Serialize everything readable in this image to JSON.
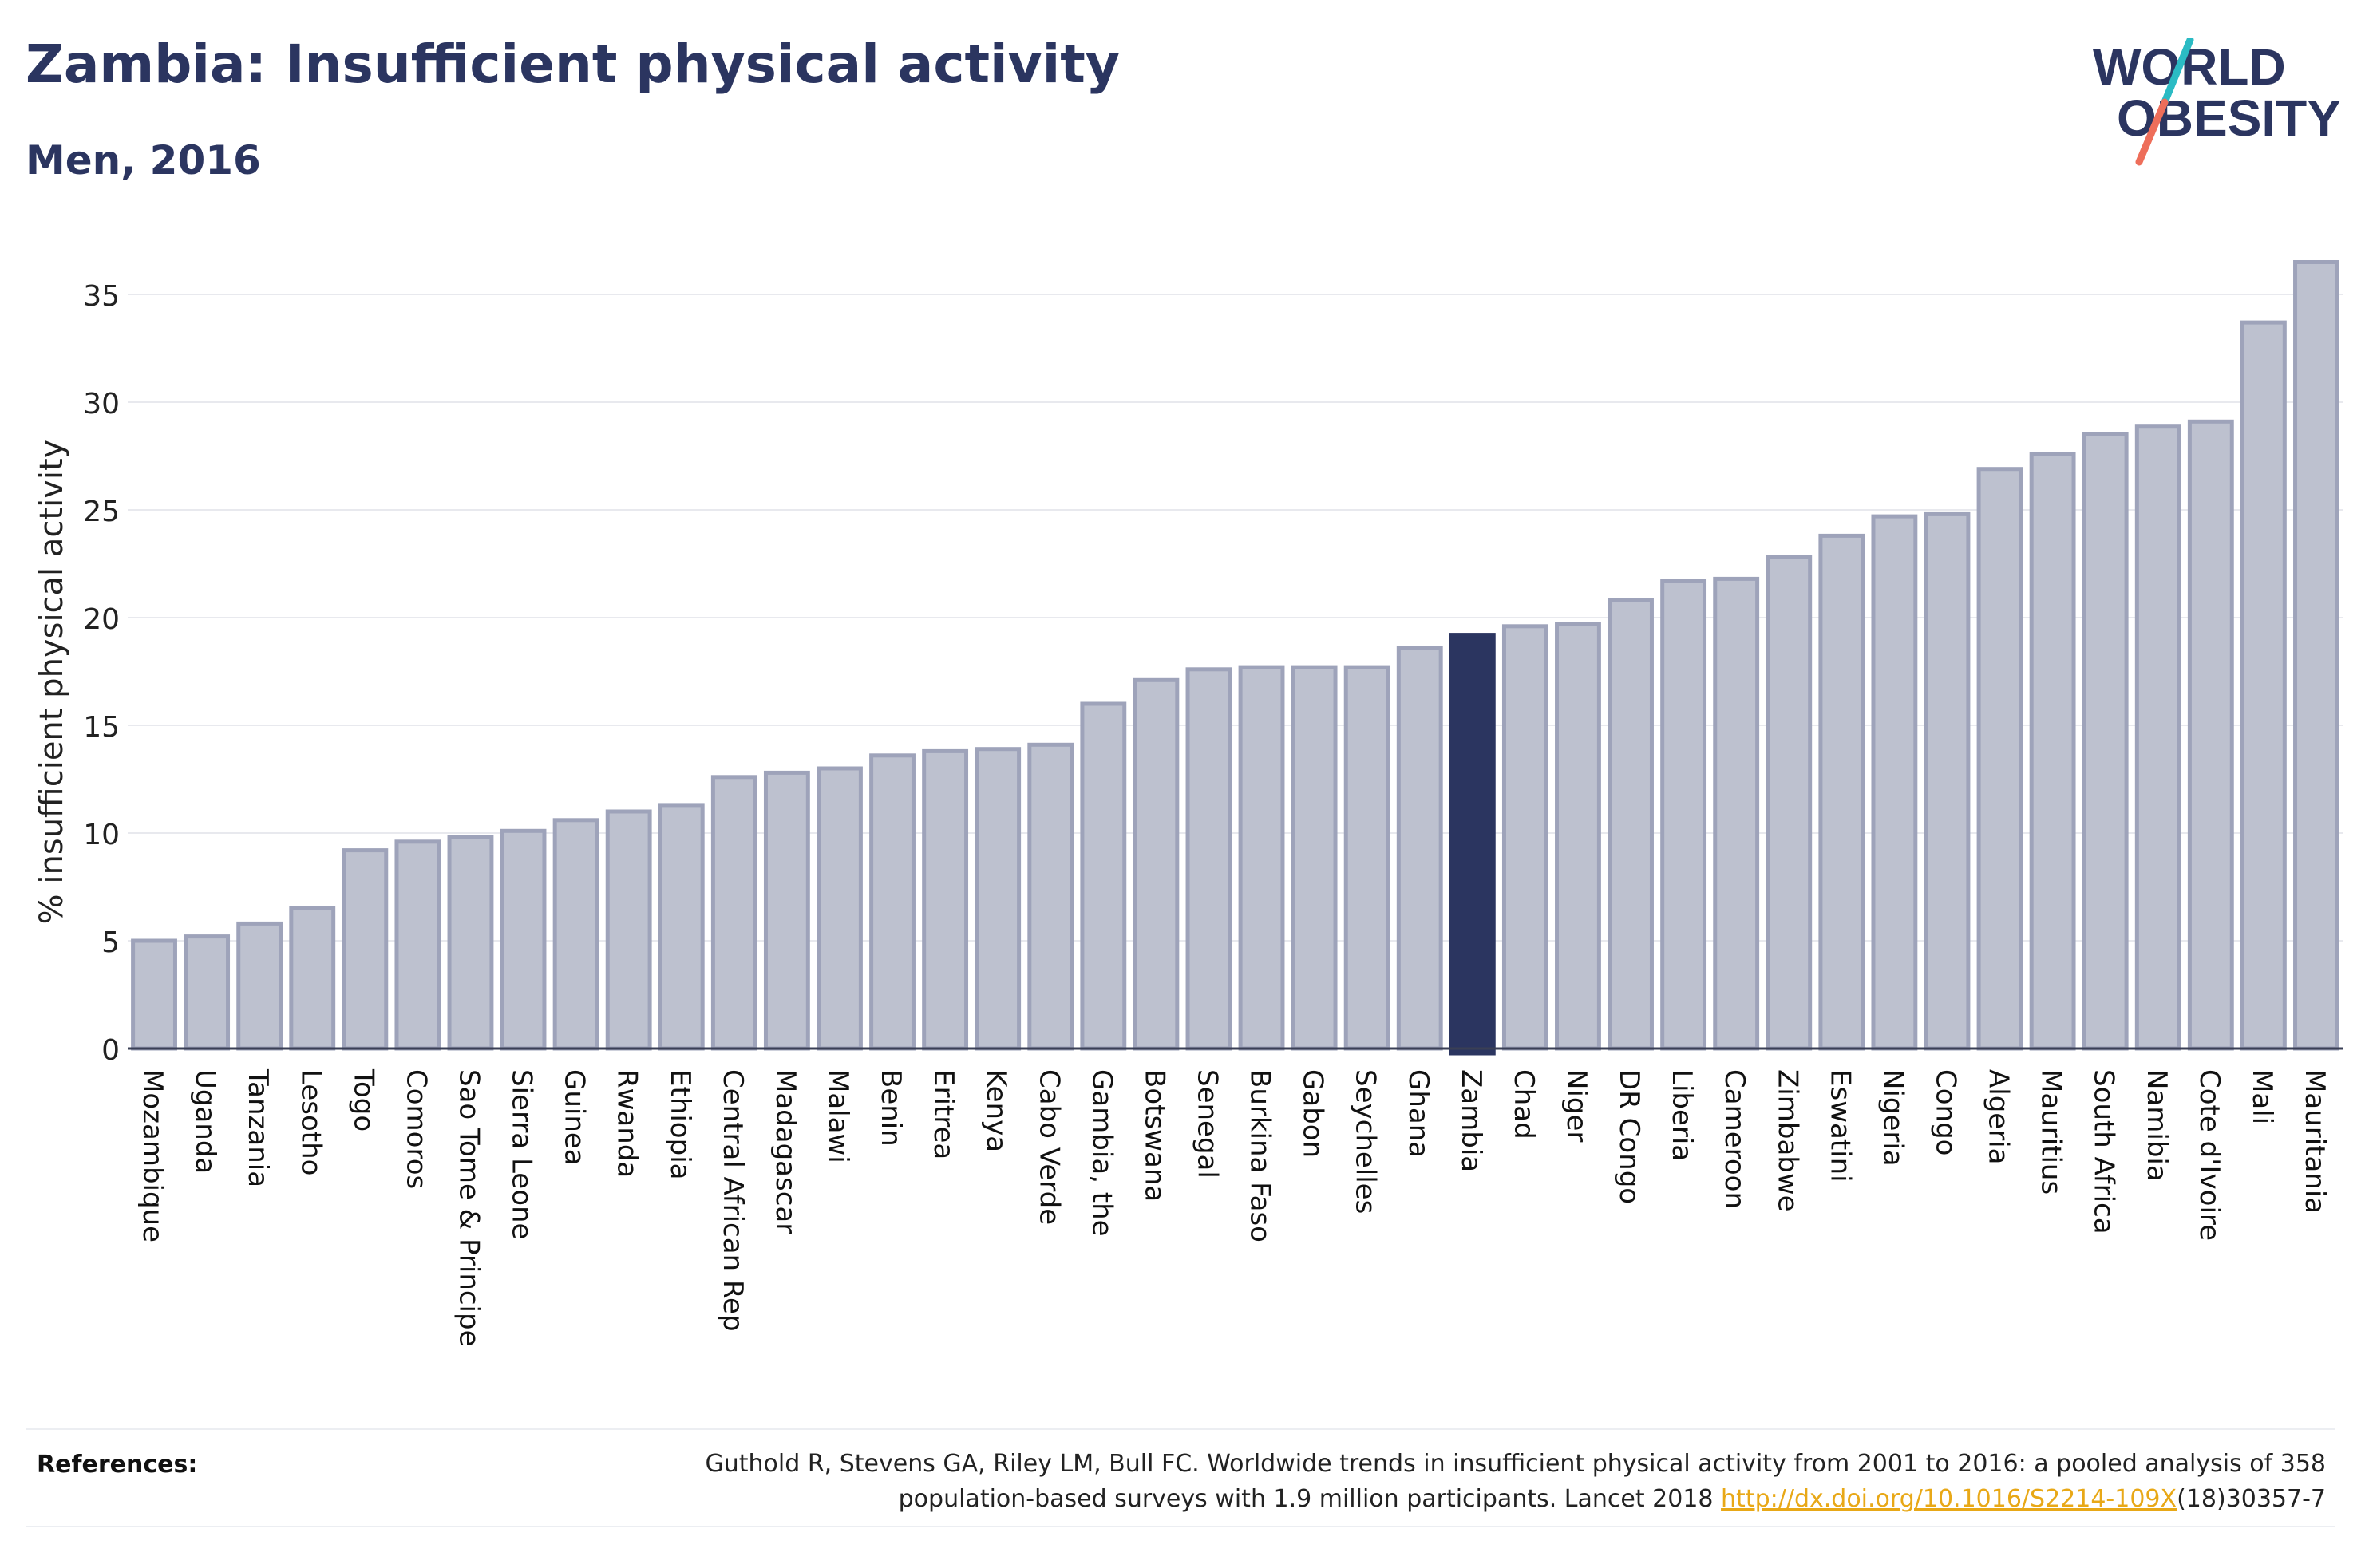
{
  "header": {
    "title": "Zambia: Insufficient physical activity",
    "subtitle": "Men, 2016"
  },
  "logo": {
    "line1": "WORLD",
    "line2": "OBESITY",
    "colors": {
      "text": "#2b3560",
      "slash_teal": "#2bbbc4",
      "slash_coral": "#ee6e5a"
    }
  },
  "chart_data": {
    "type": "bar",
    "title": "Zambia: Insufficient physical activity",
    "subtitle": "Men, 2016",
    "xlabel": "",
    "ylabel": "% insufficient physical activity",
    "ylim": [
      0,
      37
    ],
    "yticks": [
      0,
      5,
      10,
      15,
      20,
      25,
      30,
      35
    ],
    "grid": true,
    "highlight": "Zambia",
    "colors": {
      "bar": "#bdc1cf",
      "bar_border": "#9ea3ba",
      "highlight": "#2b3560",
      "grid": "#e8e9ee",
      "axis": "#3a3f55"
    },
    "categories": [
      "Mozambique",
      "Uganda",
      "Tanzania",
      "Lesotho",
      "Togo",
      "Comoros",
      "Sao Tome & Principe",
      "Sierra Leone",
      "Guinea",
      "Rwanda",
      "Ethiopia",
      "Central African Rep",
      "Madagascar",
      "Malawi",
      "Benin",
      "Eritrea",
      "Kenya",
      "Cabo Verde",
      "Gambia, the",
      "Botswana",
      "Senegal",
      "Burkina Faso",
      "Gabon",
      "Seychelles",
      "Ghana",
      "Zambia",
      "Chad",
      "Niger",
      "DR Congo",
      "Liberia",
      "Cameroon",
      "Zimbabwe",
      "Eswatini",
      "Nigeria",
      "Congo",
      "Algeria",
      "Mauritius",
      "South Africa",
      "Namibia",
      "Cote d'Ivoire",
      "Mali",
      "Mauritania"
    ],
    "values": [
      5.0,
      5.2,
      5.8,
      6.5,
      9.2,
      9.6,
      9.8,
      10.1,
      10.6,
      11.0,
      11.3,
      12.6,
      12.8,
      13.0,
      13.6,
      13.8,
      13.9,
      14.1,
      16.0,
      17.1,
      17.6,
      17.7,
      17.7,
      17.7,
      18.6,
      19.2,
      19.6,
      19.7,
      20.8,
      21.7,
      21.8,
      22.8,
      23.8,
      24.7,
      24.8,
      26.9,
      27.6,
      28.5,
      28.9,
      29.1,
      33.7,
      36.5
    ]
  },
  "references": {
    "label": "References:",
    "text_line1": "Guthold R, Stevens GA, Riley LM, Bull FC. Worldwide trends in insufficient physical activity from 2001 to 2016: a pooled analysis of 358",
    "text_line2_before": "population-based surveys with 1.9 million participants. Lancet 2018 ",
    "link": "http://dx.doi.org/10.1016/S2214-109X",
    "text_line2_after": "(18)30357-7"
  }
}
